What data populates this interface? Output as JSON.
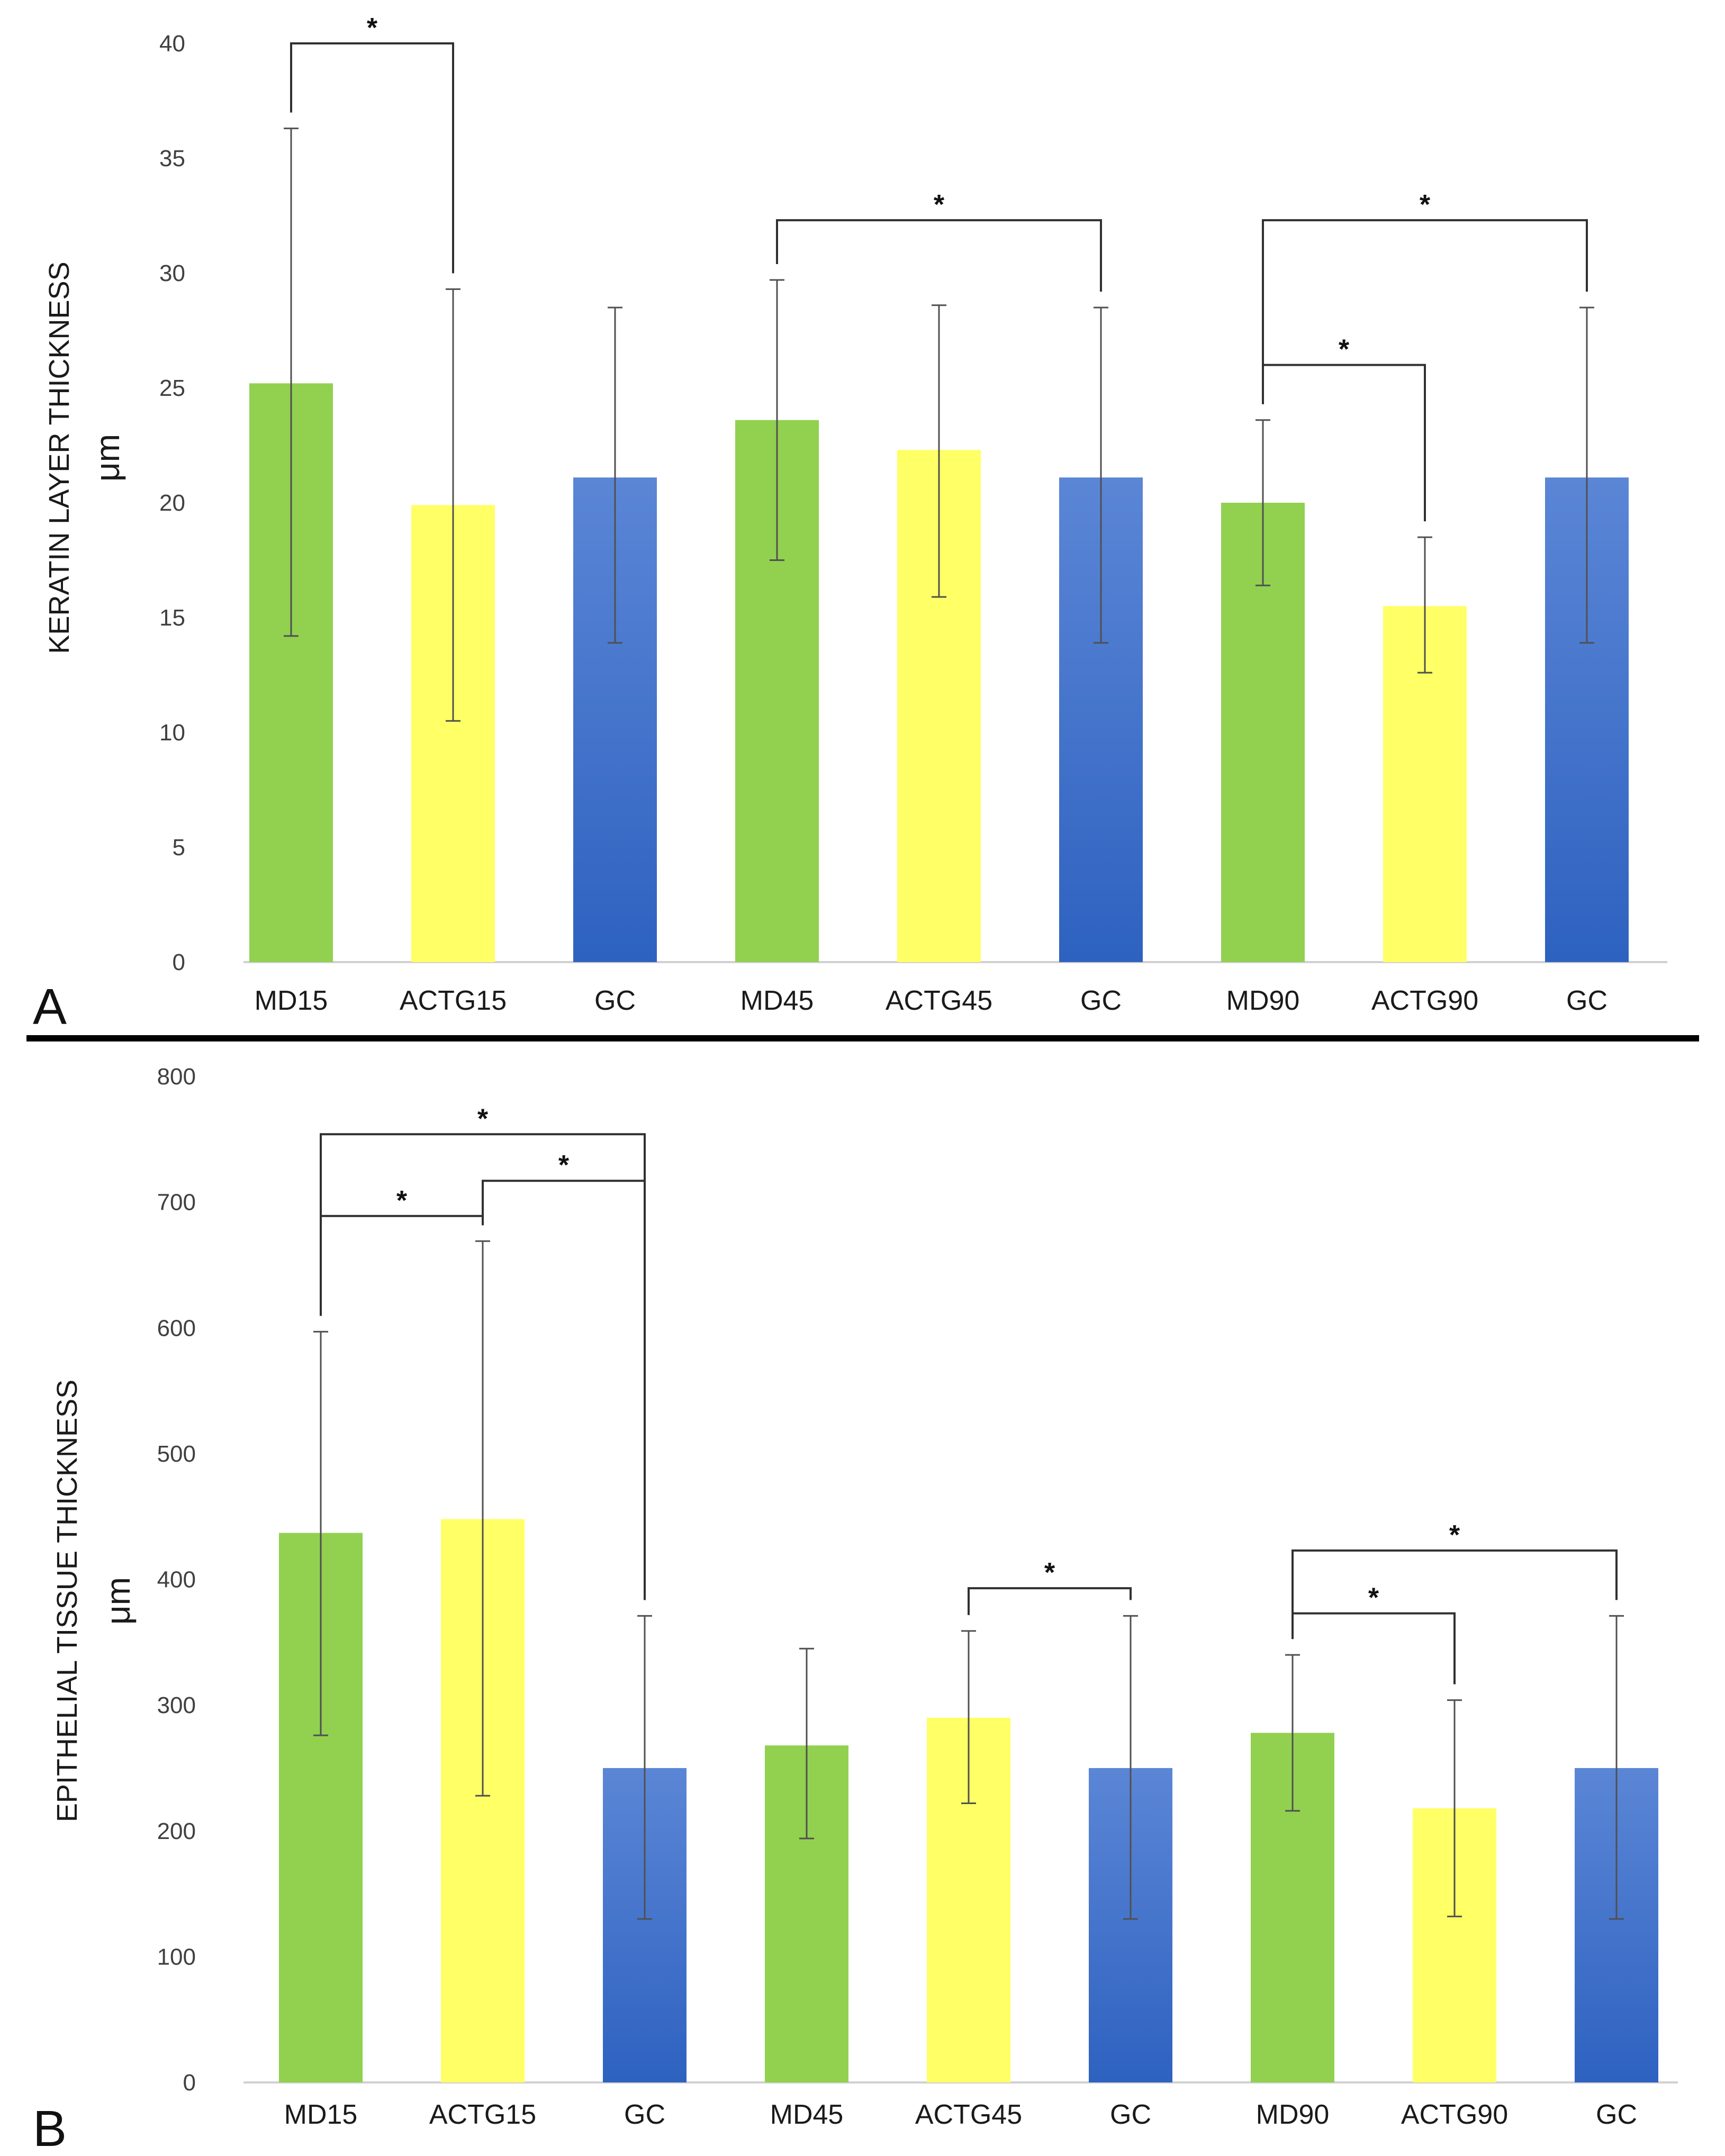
{
  "colors": {
    "green": "#92d050",
    "yellow": "#ffff66",
    "blue_top": "#5b86d6",
    "blue_bottom": "#2e62c0",
    "axis": "#d0d0d0",
    "error": "#505050",
    "bracket": "#303030",
    "divider": "#000000"
  },
  "chart_data": [
    {
      "type": "bar",
      "panel": "A",
      "title": "",
      "ylabel": "KERATIN LAYER THICKNESS",
      "yunit": "μm",
      "xlabel": "",
      "ylim": [
        0,
        40
      ],
      "yticks": [
        "0",
        "5",
        "10",
        "15",
        "20",
        "25",
        "30",
        "35",
        "40"
      ],
      "grid": false,
      "categories": [
        "MD15",
        "ACTG15",
        "GC",
        "MD45",
        "ACTG45",
        "GC",
        "MD90",
        "ACTG90",
        "GC"
      ],
      "values": [
        25.2,
        19.9,
        21.1,
        23.6,
        22.3,
        21.1,
        20.0,
        15.5,
        21.1
      ],
      "err_low": [
        14.2,
        10.5,
        13.9,
        17.5,
        15.9,
        13.9,
        16.4,
        12.6,
        13.9
      ],
      "err_high": [
        36.3,
        29.3,
        28.5,
        29.7,
        28.6,
        28.5,
        23.6,
        18.5,
        28.5
      ],
      "bar_color_groups": [
        "green",
        "yellow",
        "blue",
        "green",
        "yellow",
        "blue",
        "green",
        "yellow",
        "blue"
      ],
      "significance": [
        {
          "from": 0,
          "to": 1,
          "level": 40,
          "label": "*"
        },
        {
          "from": 3,
          "to": 5,
          "level": 32.3,
          "label": "*"
        },
        {
          "from": 6,
          "to": 8,
          "level": 32.3,
          "label": "*"
        },
        {
          "from": 6,
          "to": 7,
          "level": 26.0,
          "label": "*"
        }
      ]
    },
    {
      "type": "bar",
      "panel": "B",
      "title": "",
      "ylabel": "EPITHELIAL TISSUE THICKNESS",
      "yunit": "μm",
      "xlabel": "",
      "ylim": [
        0,
        800
      ],
      "yticks": [
        "0",
        "100",
        "200",
        "300",
        "400",
        "500",
        "600",
        "700",
        "800"
      ],
      "grid": false,
      "categories": [
        "MD15",
        "ACTG15",
        "GC",
        "MD45",
        "ACTG45",
        "GC",
        "MD90",
        "ACTG90",
        "GC"
      ],
      "values": [
        437,
        448,
        250,
        268,
        290,
        250,
        278,
        218,
        250
      ],
      "err_low": [
        276,
        228,
        130,
        194,
        222,
        130,
        216,
        132,
        130
      ],
      "err_high": [
        597,
        669,
        371,
        345,
        359,
        371,
        340,
        304,
        371
      ],
      "bar_color_groups": [
        "green",
        "yellow",
        "blue",
        "green",
        "yellow",
        "blue",
        "green",
        "yellow",
        "blue"
      ],
      "significance": [
        {
          "from": 0,
          "to": 2,
          "level": 754,
          "label": "*"
        },
        {
          "from": 1,
          "to": 2,
          "level": 717,
          "label": "*"
        },
        {
          "from": 0,
          "to": 1,
          "level": 689,
          "label": "*"
        },
        {
          "from": 4,
          "to": 5,
          "level": 393,
          "label": "*"
        },
        {
          "from": 6,
          "to": 8,
          "level": 423,
          "label": "*"
        },
        {
          "from": 6,
          "to": 7,
          "level": 373,
          "label": "*"
        }
      ]
    }
  ]
}
